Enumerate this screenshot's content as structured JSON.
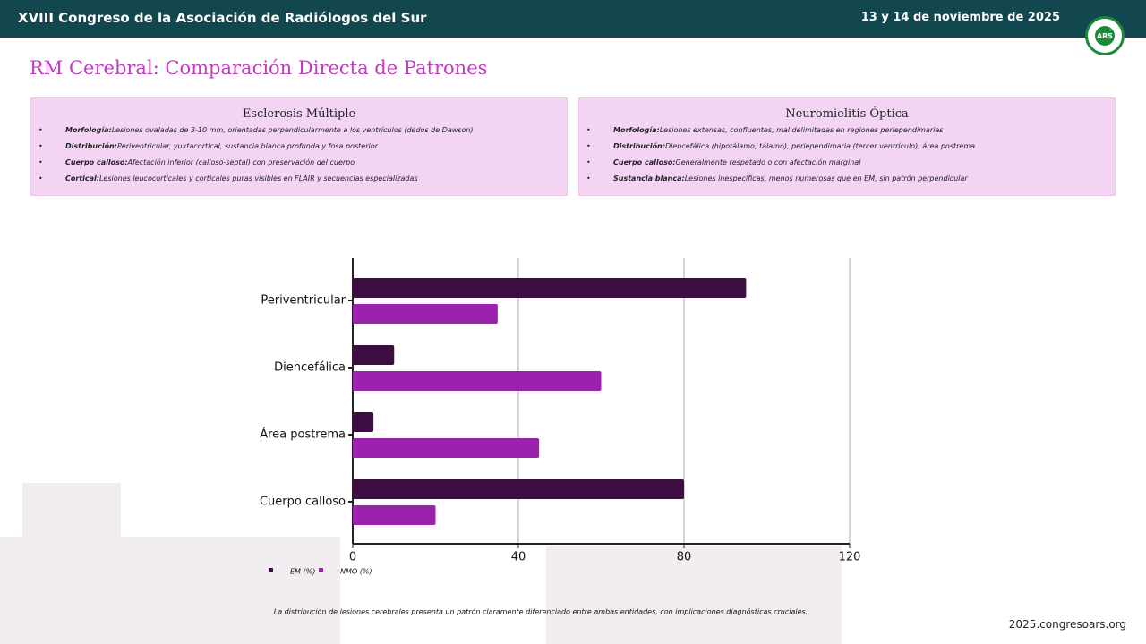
{
  "header": {
    "title": "XVIII Congreso de la Asociación de Radiólogos del Sur",
    "date": "13 y 14 de noviembre de 2025",
    "logo": "ARS"
  },
  "slide_title": "RM Cerebral: Comparación Directa de Patrones",
  "cards": [
    {
      "title": "Esclerosis Múltiple",
      "items": [
        {
          "label": "Morfología:",
          "text": "Lesiones ovaladas de 3-10 mm, orientadas perpendicularmente a los ventrículos (dedos de Dawson)"
        },
        {
          "label": "Distribución:",
          "text": "Periventricular, yuxtacortical, sustancia blanca profunda y fosa posterior"
        },
        {
          "label": "Cuerpo calloso:",
          "text": "Afectación inferior (calloso-septal) con preservación del cuerpo"
        },
        {
          "label": "Cortical:",
          "text": "Lesiones leucocorticales y corticales puras visibles en FLAIR y secuencias especializadas"
        }
      ]
    },
    {
      "title": "Neuromielitis Óptica",
      "items": [
        {
          "label": "Morfología:",
          "text": "Lesiones extensas, confluentes, mal delimitadas en regiones periependimarias"
        },
        {
          "label": "Distribución:",
          "text": "Diencefálica (hipotálamo, tálamo), periependimaria (tercer ventrículo), área postrema"
        },
        {
          "label": "Cuerpo calloso:",
          "text": "Generalmente respetado o con afectación marginal"
        },
        {
          "label": "Sustancia blanca:",
          "text": "Lesiones inespecíficas, menos numerosas que en EM, sin patrón perpendicular"
        }
      ]
    }
  ],
  "chart_data": {
    "type": "hbar",
    "categories": [
      "Periventricular",
      "Diencefálica",
      "Área postrema",
      "Cuerpo calloso"
    ],
    "series": [
      {
        "name": "EM (%)",
        "color": "#3d0c40",
        "values": [
          95,
          10,
          5,
          80
        ]
      },
      {
        "name": "NMO (%)",
        "color": "#9c22ad",
        "values": [
          35,
          60,
          45,
          20
        ]
      }
    ],
    "xlim": [
      0,
      120
    ],
    "xticks": [
      0,
      40,
      80,
      120
    ],
    "grid": true,
    "caption": "La distribución de lesiones cerebrales presenta un patrón claramente diferenciado entre ambas entidades, con implicaciones diagnósticas cruciales."
  },
  "footer": "2025.congresoars.org"
}
